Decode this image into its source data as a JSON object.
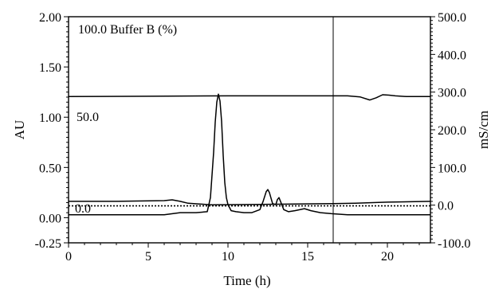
{
  "chart_data": {
    "type": "line",
    "title": "",
    "xlabel": "Time (h)",
    "ylabel_left": "AU",
    "ylabel_right": "mS/cm",
    "xlim": [
      0,
      22.7
    ],
    "ylim_left": [
      -0.25,
      2.0
    ],
    "ylim_right": [
      -100.0,
      500.0
    ],
    "x_ticks": [
      "0",
      "5",
      "10",
      "15",
      "20"
    ],
    "y_left_ticks": [
      "-0.25",
      "0.00",
      "0.50",
      "1.00",
      "1.50",
      "2.00"
    ],
    "y_right_ticks": [
      "-100.0",
      "0.0",
      "100.0",
      "200.0",
      "300.0",
      "400.0",
      "500.0"
    ],
    "inner_labels": {
      "buffer_top": "100.0  Buffer B (%)",
      "buffer_mid": "50.0",
      "buffer_zero": "0.0"
    },
    "marker_line_x": 16.6,
    "grid": false,
    "series": [
      {
        "axis": "left",
        "style": "solid",
        "x": [
          0,
          3,
          6,
          7,
          8,
          8.7,
          8.9,
          9.1,
          9.2,
          9.3,
          9.4,
          9.5,
          9.6,
          9.7,
          9.8,
          9.9,
          10.0,
          10.2,
          10.5,
          11.0,
          11.5,
          12.0,
          12.2,
          12.4,
          12.5,
          12.6,
          12.8,
          13.0,
          13.1,
          13.2,
          13.3,
          13.5,
          13.8,
          14.2,
          14.8,
          15.2,
          15.8,
          16.5,
          17.5,
          19,
          21,
          22.7
        ],
        "y": [
          0.03,
          0.03,
          0.03,
          0.05,
          0.05,
          0.06,
          0.2,
          0.65,
          0.95,
          1.15,
          1.23,
          1.16,
          0.96,
          0.62,
          0.35,
          0.2,
          0.13,
          0.07,
          0.06,
          0.05,
          0.05,
          0.08,
          0.16,
          0.26,
          0.28,
          0.25,
          0.14,
          0.13,
          0.18,
          0.2,
          0.16,
          0.08,
          0.06,
          0.07,
          0.09,
          0.07,
          0.05,
          0.04,
          0.03,
          0.03,
          0.03,
          0.03
        ]
      },
      {
        "axis": "right",
        "style": "solid",
        "x": [
          0,
          5,
          10,
          15,
          16.6,
          17.5,
          18.3,
          18.9,
          19.3,
          19.7,
          20.1,
          20.5,
          21.2,
          22.7
        ],
        "y": [
          288,
          289,
          290,
          290,
          290,
          290,
          287,
          279,
          285,
          293,
          292,
          290,
          288,
          288
        ]
      },
      {
        "axis": "right",
        "style": "solid",
        "x": [
          0,
          3,
          6,
          6.5,
          7,
          7.5,
          8.2,
          9,
          12,
          16.6,
          18,
          20,
          22.7
        ],
        "y": [
          10,
          10,
          12,
          14,
          10,
          5,
          3,
          1,
          2,
          4,
          5,
          8,
          10
        ]
      },
      {
        "axis": "right",
        "style": "dotted",
        "x": [
          0,
          22.7
        ],
        "y": [
          -2,
          -2
        ]
      }
    ]
  }
}
